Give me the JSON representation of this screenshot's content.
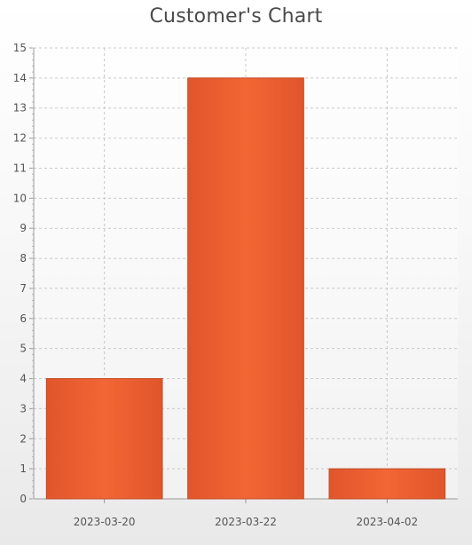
{
  "chart_data": {
    "type": "bar",
    "title": "Customer's Chart",
    "xlabel": "",
    "ylabel": "",
    "categories": [
      "2023-03-20",
      "2023-03-22",
      "2023-04-02"
    ],
    "values": [
      4,
      14,
      1
    ],
    "ylim": [
      0,
      15
    ],
    "yticks": [
      0,
      1,
      2,
      3,
      4,
      5,
      6,
      7,
      8,
      9,
      10,
      11,
      12,
      13,
      14,
      15
    ],
    "grid": true,
    "legend": "none",
    "bar_color": "#e0552b",
    "bar_highlight": "#f26634"
  }
}
